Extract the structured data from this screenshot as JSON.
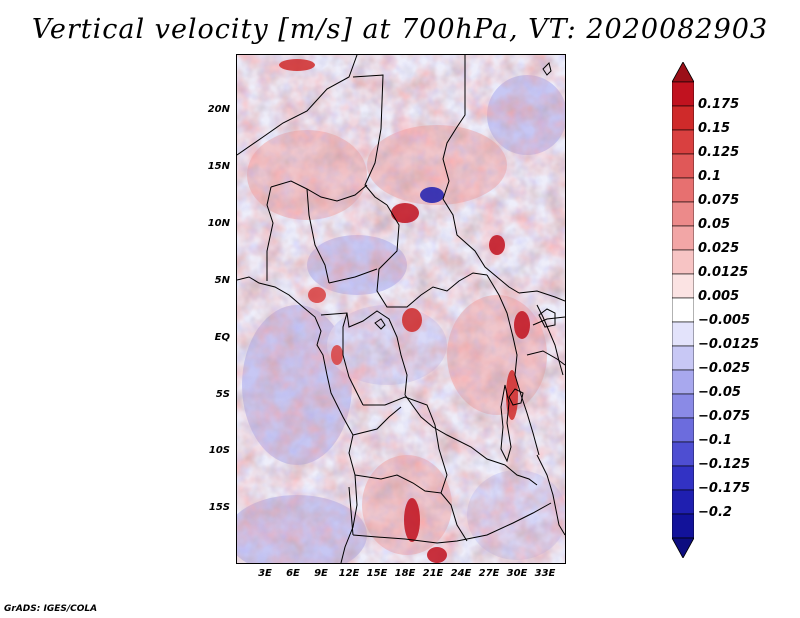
{
  "title": "Vertical velocity [m/s] at 700hPa, VT: 2020082903",
  "credit": "GrADS: IGES/COLA",
  "map": {
    "lat_labels": [
      "20N",
      "15N",
      "10N",
      "5N",
      "EQ",
      "5S",
      "10S",
      "15S"
    ],
    "lon_labels": [
      "3E",
      "6E",
      "9E",
      "12E",
      "15E",
      "18E",
      "21E",
      "24E",
      "27E",
      "30E",
      "33E"
    ],
    "extent": {
      "lon_min": 0,
      "lon_max": 35,
      "lat_min": -20,
      "lat_max": 24.5
    }
  },
  "colorbar": {
    "labels": [
      "0.175",
      "0.15",
      "0.125",
      "0.1",
      "0.075",
      "0.05",
      "0.025",
      "0.0125",
      "0.005",
      "−0.005",
      "−0.0125",
      "−0.025",
      "−0.05",
      "−0.075",
      "−0.1",
      "−0.125",
      "−0.175",
      "−0.2"
    ],
    "colors": [
      "#c1121f",
      "#cf2a2a",
      "#d94040",
      "#e05858",
      "#e77070",
      "#ec8a8a",
      "#f2a6a6",
      "#f7c4c4",
      "#fbe3e3",
      "#ffffff",
      "#e3e3fb",
      "#c8c8f5",
      "#a8a8ee",
      "#8a8ae6",
      "#6c6cdd",
      "#4e4ed2",
      "#3232c4",
      "#1f1fb0",
      "#12129a"
    ],
    "top_arrow_color": "#9b0f18",
    "bottom_arrow_color": "#0d0d80"
  }
}
